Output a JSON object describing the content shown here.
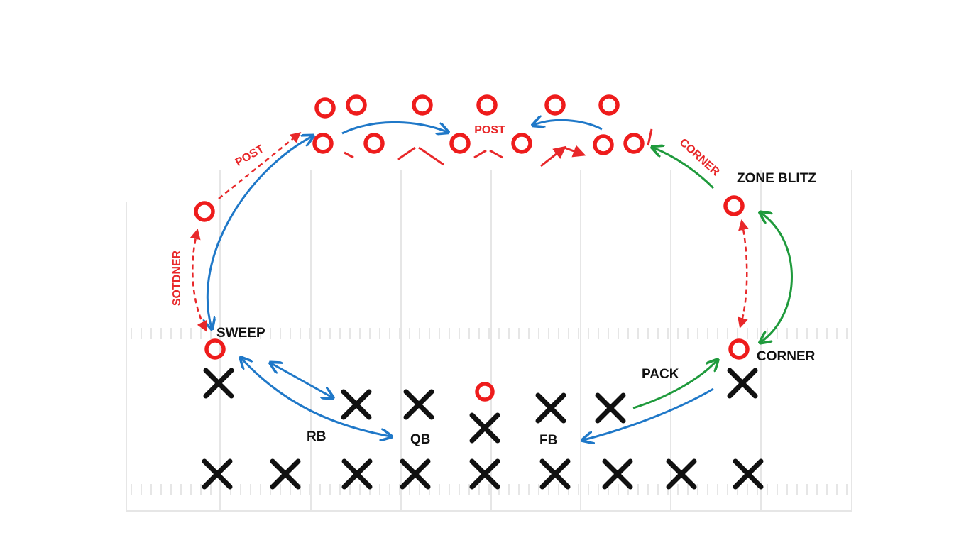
{
  "labels": [
    "POST",
    "POST",
    "CORNER",
    "ZONE BLITZ",
    "SOTDNER",
    "SWEEP",
    "CORNER",
    "PACK",
    "RB",
    "QB",
    "FB"
  ]
}
